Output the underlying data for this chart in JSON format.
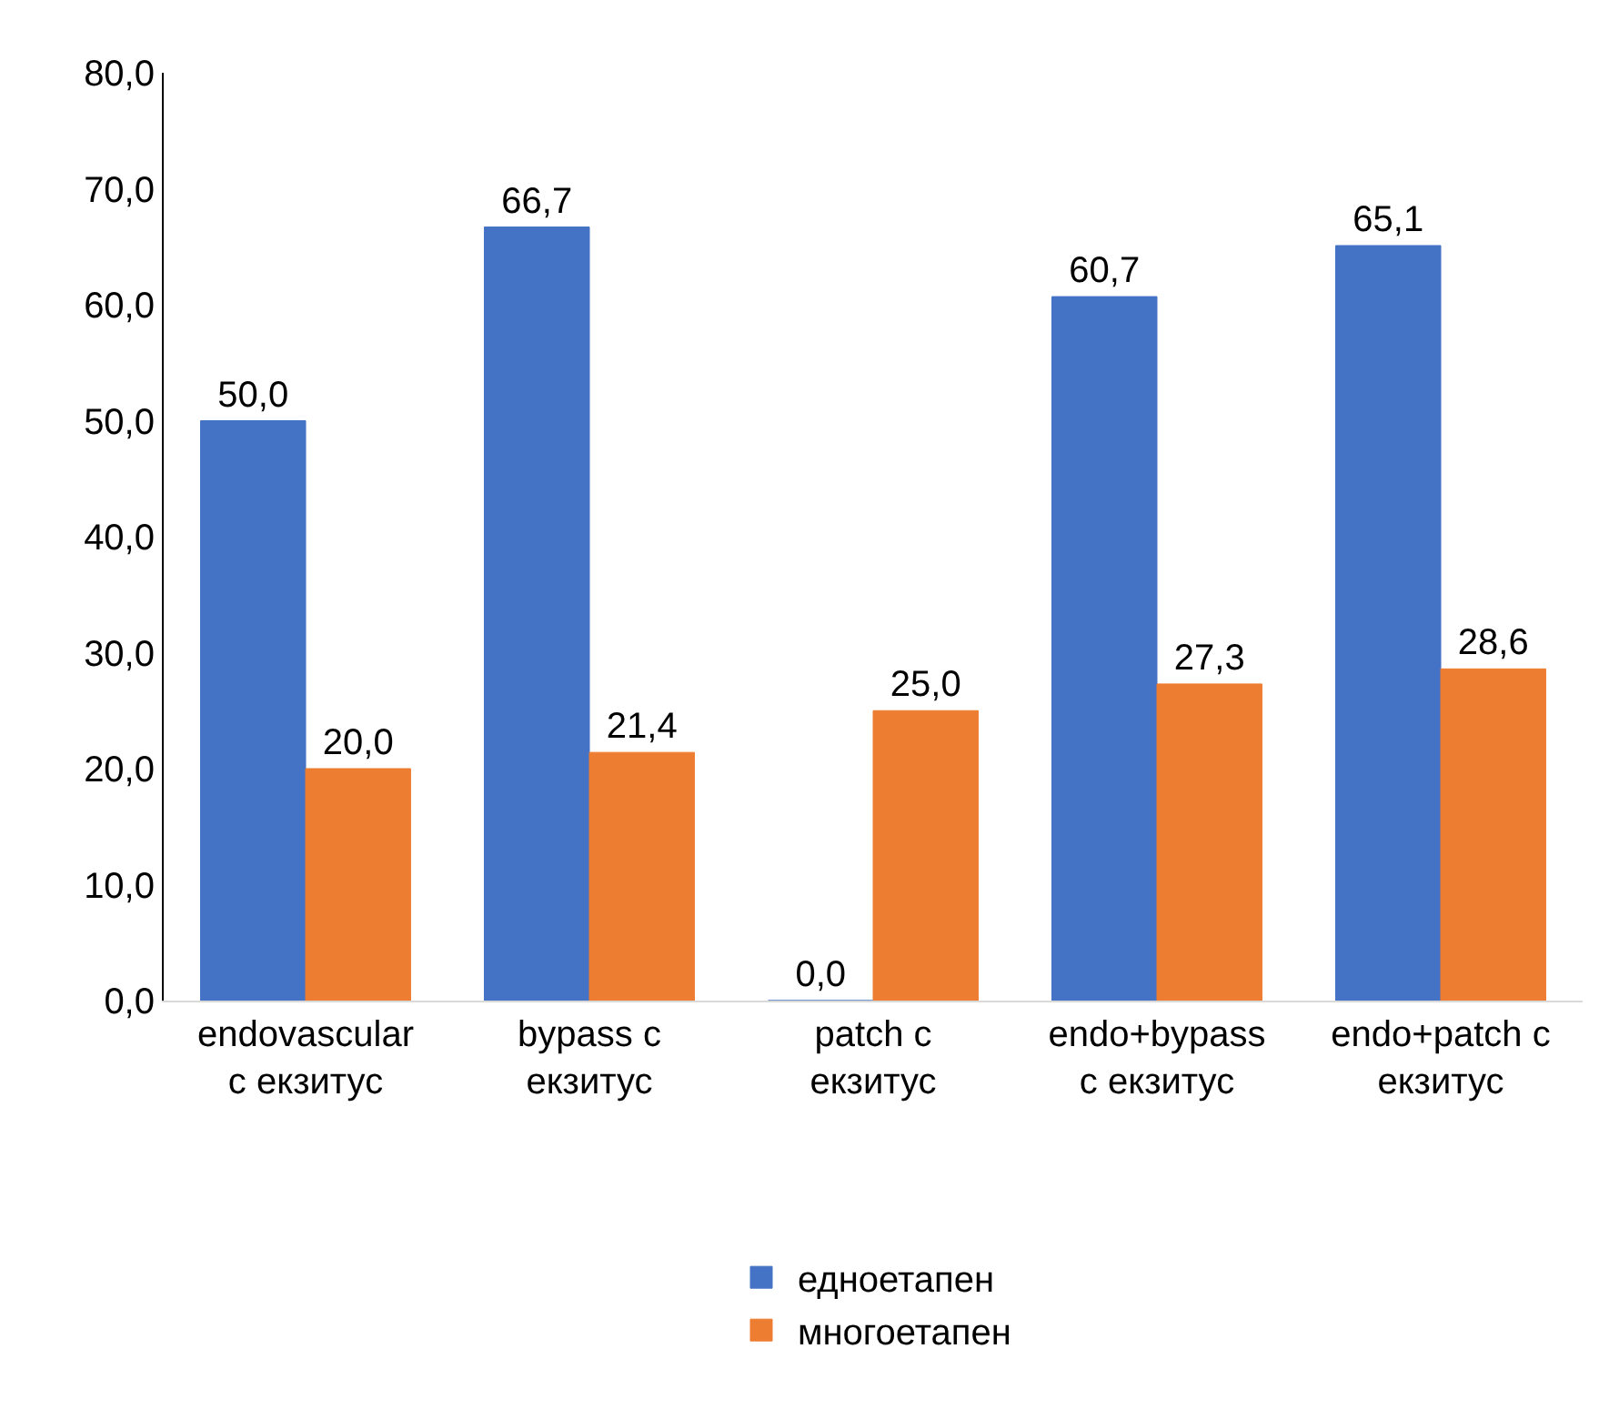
{
  "chart_data": {
    "type": "bar",
    "categories": [
      "endovascular с екзитус",
      "bypass с екзитус",
      "patch с екзитус",
      "endo+bypass с екзитус",
      "endo+patch с екзитус"
    ],
    "series": [
      {
        "name": "едноетапен",
        "color": "#4472c4",
        "values": [
          50.0,
          66.7,
          0.0,
          60.7,
          65.1
        ],
        "value_labels": [
          "50,0",
          "66,7",
          "0,0",
          "60,7",
          "65,1"
        ]
      },
      {
        "name": "многоетапен",
        "color": "#ed7d31",
        "values": [
          20.0,
          21.4,
          25.0,
          27.3,
          28.6
        ],
        "value_labels": [
          "20,0",
          "21,4",
          "25,0",
          "27,3",
          "28,6"
        ]
      }
    ],
    "ylim": [
      0,
      80
    ],
    "yticks": [
      {
        "value": 0,
        "label": "0,0"
      },
      {
        "value": 10,
        "label": "10,0"
      },
      {
        "value": 20,
        "label": "20,0"
      },
      {
        "value": 30,
        "label": "30,0"
      },
      {
        "value": 40,
        "label": "40,0"
      },
      {
        "value": 50,
        "label": "50,0"
      },
      {
        "value": 60,
        "label": "60,0"
      },
      {
        "value": 70,
        "label": "70,0"
      },
      {
        "value": 80,
        "label": "80,0"
      }
    ],
    "grid": false,
    "legend": "bottom"
  }
}
